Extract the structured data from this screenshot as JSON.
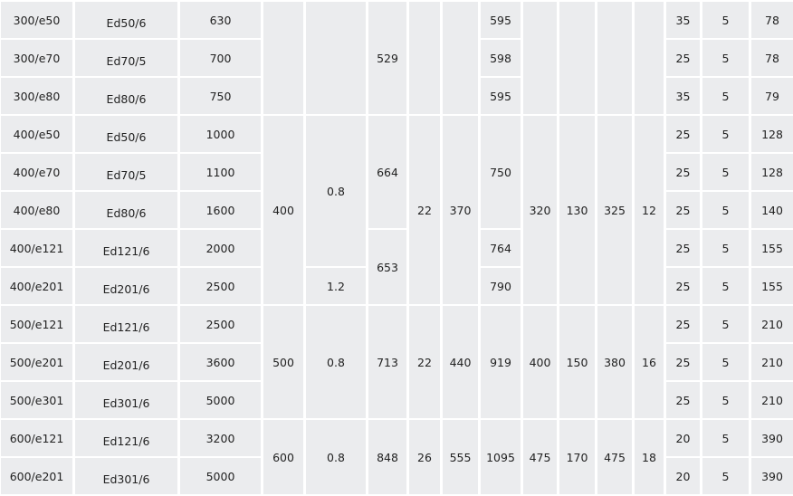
{
  "table": {
    "columns": [
      [
        "300/e50",
        "300/e70",
        "300/e80",
        "400/e50",
        "400/e70",
        "400/e80",
        "400/e121",
        "400/e201",
        "500/e121",
        "500/e201",
        "500/e301",
        "600/e121",
        "600/e201"
      ],
      [
        "Ed50/6",
        "Ed70/5",
        "Ed80/6",
        "Ed50/6",
        "Ed70/5",
        "Ed80/6",
        "Ed121/6",
        "Ed201/6",
        "Ed121/6",
        "Ed201/6",
        "Ed301/6",
        "Ed121/6",
        "Ed301/6"
      ],
      [
        "630",
        "700",
        "750",
        "1000",
        "1100",
        "1600",
        "2000",
        "2500",
        "2500",
        "3600",
        "5000",
        "3200",
        "5000"
      ],
      [
        "",
        "400",
        "500",
        "600"
      ],
      [
        "",
        "0.8",
        "1.2",
        "0.8",
        "0.8"
      ],
      [
        "529",
        "664",
        "653",
        "713",
        "848"
      ],
      [
        "",
        "22",
        "22",
        "26"
      ],
      [
        "",
        "370",
        "440",
        "555"
      ],
      [
        "595",
        "598",
        "595",
        "750",
        "764",
        "790",
        "919",
        "1095"
      ],
      [
        "",
        "320",
        "400",
        "475"
      ],
      [
        "",
        "130",
        "150",
        "170"
      ],
      [
        "",
        "325",
        "380",
        "475"
      ],
      [
        "",
        "12",
        "16",
        "18"
      ],
      [
        "35",
        "25",
        "35",
        "25",
        "25",
        "25",
        "25",
        "25",
        "25",
        "25",
        "25",
        "20",
        "20"
      ],
      [
        "5",
        "5",
        "5",
        "5",
        "5",
        "5",
        "5",
        "5",
        "5",
        "5",
        "5",
        "5",
        "5"
      ],
      [
        "78",
        "78",
        "79",
        "128",
        "128",
        "140",
        "155",
        "155",
        "210",
        "210",
        "210",
        "390",
        "390"
      ]
    ]
  },
  "colors": {
    "cell_background": "#ebecee",
    "grid_lines": "#ffffff",
    "text": "#222222"
  }
}
